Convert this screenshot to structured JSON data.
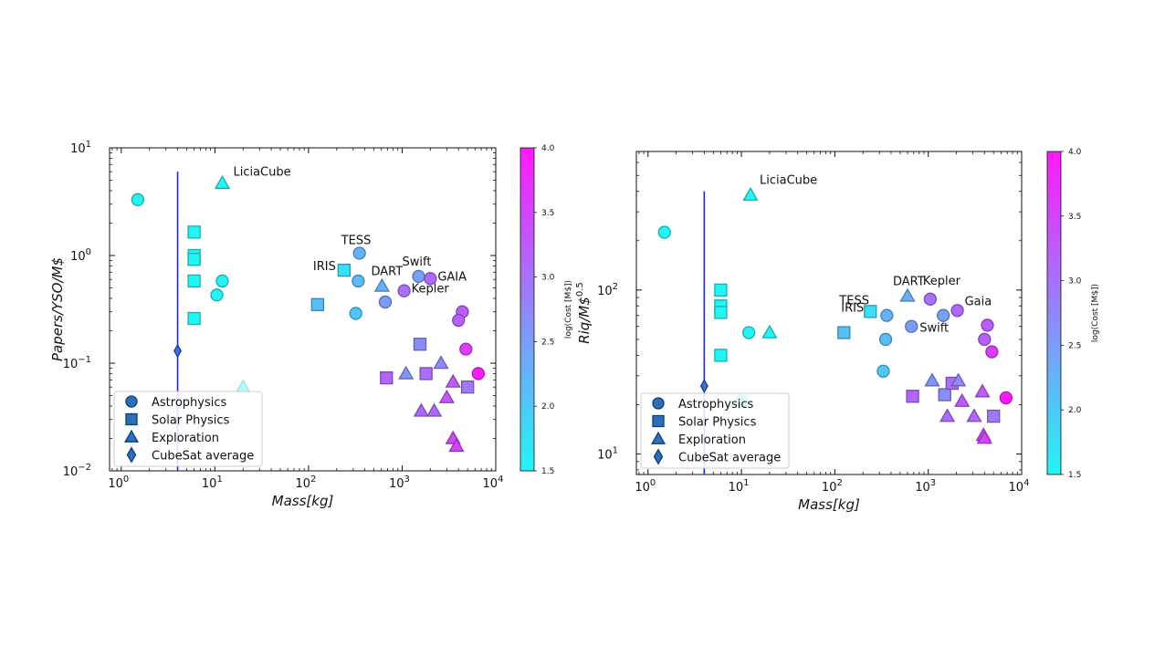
{
  "colormap": {
    "low": "#22f5f5",
    "high": "#ff19ff",
    "range": [
      1.5,
      4.0
    ]
  },
  "legend": {
    "entries": [
      {
        "label": "Astrophysics",
        "marker": "circle"
      },
      {
        "label": "Solar Physics",
        "marker": "square"
      },
      {
        "label": "Exploration",
        "marker": "triangle"
      },
      {
        "label": "CubeSat average",
        "marker": "diamond"
      }
    ],
    "placement": "lower-left"
  },
  "chart_data": [
    {
      "type": "scatter",
      "xlabel": "Mass[kg]",
      "ylabel": "Papers/YSO/M$",
      "xscale": "log",
      "yscale": "log",
      "xlim": [
        0.75,
        10000
      ],
      "ylim": [
        0.01,
        10
      ],
      "xticks": [
        {
          "v": 1,
          "b": "10",
          "e": "0"
        },
        {
          "v": 10,
          "b": "10",
          "e": "1"
        },
        {
          "v": 100,
          "b": "10",
          "e": "2"
        },
        {
          "v": 1000,
          "b": "10",
          "e": "3"
        },
        {
          "v": 10000,
          "b": "10",
          "e": "4"
        }
      ],
      "yticks": [
        {
          "v": 0.01,
          "b": "10",
          "e": "−2"
        },
        {
          "v": 0.1,
          "b": "10",
          "e": "−1"
        },
        {
          "v": 1,
          "b": "10",
          "e": "0"
        },
        {
          "v": 10,
          "b": "10",
          "e": "1"
        }
      ],
      "colorbar": {
        "label": "log(Cost [M$])",
        "ticks": [
          "1.5",
          "2.0",
          "2.5",
          "3.0",
          "3.5",
          "4.0"
        ],
        "tick_values": [
          1.5,
          2.0,
          2.5,
          3.0,
          3.5,
          4.0
        ]
      },
      "cubesat_average": {
        "x": 4,
        "y": 0.13,
        "y_low": 0.01,
        "y_high": 6
      },
      "points": [
        {
          "x": 1.5,
          "y": 3.3,
          "m": "circle",
          "c": 1.5
        },
        {
          "x": 10.5,
          "y": 0.43,
          "m": "circle",
          "c": 1.55
        },
        {
          "x": 12,
          "y": 0.58,
          "m": "circle",
          "c": 1.55
        },
        {
          "x": 12,
          "y": 4.7,
          "m": "triangle",
          "c": 1.5,
          "label": "LiciaCube"
        },
        {
          "x": 20,
          "y": 0.06,
          "m": "triangle",
          "c": 1.5,
          "alpha": 0.35
        },
        {
          "x": 6,
          "y": 1.65,
          "m": "square",
          "c": 1.5
        },
        {
          "x": 6,
          "y": 1.0,
          "m": "square",
          "c": 1.5
        },
        {
          "x": 6,
          "y": 0.92,
          "m": "square",
          "c": 1.5
        },
        {
          "x": 6,
          "y": 0.58,
          "m": "square",
          "c": 1.5
        },
        {
          "x": 6,
          "y": 0.26,
          "m": "square",
          "c": 1.5
        },
        {
          "x": 350,
          "y": 1.05,
          "m": "circle",
          "c": 2.25,
          "label": "TESS"
        },
        {
          "x": 340,
          "y": 0.58,
          "m": "circle",
          "c": 2.15
        },
        {
          "x": 320,
          "y": 0.29,
          "m": "circle",
          "c": 2.0
        },
        {
          "x": 240,
          "y": 0.73,
          "m": "square",
          "c": 1.75,
          "label": "IRIS"
        },
        {
          "x": 125,
          "y": 0.35,
          "m": "square",
          "c": 2.1
        },
        {
          "x": 610,
          "y": 0.52,
          "m": "triangle",
          "c": 2.3,
          "label": "DART"
        },
        {
          "x": 660,
          "y": 0.37,
          "m": "circle",
          "c": 2.5
        },
        {
          "x": 1500,
          "y": 0.64,
          "m": "circle",
          "c": 2.45,
          "label": "Swift"
        },
        {
          "x": 2000,
          "y": 0.61,
          "m": "circle",
          "c": 3.1,
          "label": "GAIA"
        },
        {
          "x": 1050,
          "y": 0.47,
          "m": "circle",
          "c": 3.0,
          "label": "Kepler"
        },
        {
          "x": 4400,
          "y": 0.3,
          "m": "circle",
          "c": 3.25
        },
        {
          "x": 4000,
          "y": 0.25,
          "m": "circle",
          "c": 3.2
        },
        {
          "x": 4800,
          "y": 0.135,
          "m": "circle",
          "c": 3.6
        },
        {
          "x": 6500,
          "y": 0.08,
          "m": "circle",
          "c": 4.0
        },
        {
          "x": 1550,
          "y": 0.15,
          "m": "square",
          "c": 2.7
        },
        {
          "x": 1800,
          "y": 0.08,
          "m": "square",
          "c": 3.05
        },
        {
          "x": 680,
          "y": 0.073,
          "m": "square",
          "c": 3.15
        },
        {
          "x": 5000,
          "y": 0.06,
          "m": "square",
          "c": 2.9
        },
        {
          "x": 1100,
          "y": 0.08,
          "m": "triangle",
          "c": 2.6
        },
        {
          "x": 2600,
          "y": 0.1,
          "m": "triangle",
          "c": 2.75
        },
        {
          "x": 3500,
          "y": 0.067,
          "m": "triangle",
          "c": 3.25
        },
        {
          "x": 3000,
          "y": 0.048,
          "m": "triangle",
          "c": 3.3
        },
        {
          "x": 1600,
          "y": 0.036,
          "m": "triangle",
          "c": 3.1
        },
        {
          "x": 2200,
          "y": 0.036,
          "m": "triangle",
          "c": 3.05
        },
        {
          "x": 3500,
          "y": 0.02,
          "m": "triangle",
          "c": 3.45
        },
        {
          "x": 3800,
          "y": 0.017,
          "m": "triangle",
          "c": 3.5
        }
      ]
    },
    {
      "type": "scatter",
      "xlabel": "Mass[kg]",
      "ylabel": "Riq/M$",
      "ylabel_sup": "0.5",
      "xscale": "log",
      "yscale": "log",
      "xlim": [
        0.75,
        10000
      ],
      "ylim": [
        7.5,
        700
      ],
      "xticks": [
        {
          "v": 1,
          "b": "10",
          "e": "0"
        },
        {
          "v": 10,
          "b": "10",
          "e": "1"
        },
        {
          "v": 100,
          "b": "10",
          "e": "2"
        },
        {
          "v": 1000,
          "b": "10",
          "e": "3"
        },
        {
          "v": 10000,
          "b": "10",
          "e": "4"
        }
      ],
      "yticks": [
        {
          "v": 10,
          "b": "10",
          "e": "1"
        },
        {
          "v": 100,
          "b": "10",
          "e": "2"
        }
      ],
      "colorbar": {
        "label": "log(Cost [M$])",
        "ticks": [
          "1.5",
          "2.0",
          "2.5",
          "3.0",
          "3.5",
          "4.0"
        ],
        "tick_values": [
          1.5,
          2.0,
          2.5,
          3.0,
          3.5,
          4.0
        ]
      },
      "cubesat_average": {
        "x": 4,
        "y": 26,
        "y_low": 7.5,
        "y_high": 400
      },
      "points": [
        {
          "x": 1.5,
          "y": 225,
          "m": "circle",
          "c": 1.5
        },
        {
          "x": 12,
          "y": 55,
          "m": "circle",
          "c": 1.5
        },
        {
          "x": 10,
          "y": 21,
          "m": "circle",
          "c": 1.5
        },
        {
          "x": 12.5,
          "y": 380,
          "m": "triangle",
          "c": 1.5,
          "label": "LiciaCube"
        },
        {
          "x": 20,
          "y": 55,
          "m": "triangle",
          "c": 1.5
        },
        {
          "x": 6,
          "y": 100,
          "m": "square",
          "c": 1.5
        },
        {
          "x": 6,
          "y": 80,
          "m": "square",
          "c": 1.5
        },
        {
          "x": 6,
          "y": 73,
          "m": "square",
          "c": 1.5
        },
        {
          "x": 6,
          "y": 40,
          "m": "square",
          "c": 1.5
        },
        {
          "x": 240,
          "y": 74,
          "m": "square",
          "c": 1.75,
          "label": "IRIS"
        },
        {
          "x": 125,
          "y": 55,
          "m": "square",
          "c": 2.1
        },
        {
          "x": 360,
          "y": 70,
          "m": "circle",
          "c": 2.25,
          "label": "TESS"
        },
        {
          "x": 350,
          "y": 50,
          "m": "circle",
          "c": 2.15
        },
        {
          "x": 330,
          "y": 32,
          "m": "circle",
          "c": 2.0
        },
        {
          "x": 600,
          "y": 92,
          "m": "triangle",
          "c": 2.3,
          "label": "DART"
        },
        {
          "x": 660,
          "y": 60,
          "m": "circle",
          "c": 2.5
        },
        {
          "x": 1050,
          "y": 88,
          "m": "circle",
          "c": 3.0,
          "label": "Kepler"
        },
        {
          "x": 1450,
          "y": 70,
          "m": "circle",
          "c": 2.45,
          "label": "Swift"
        },
        {
          "x": 2050,
          "y": 75,
          "m": "circle",
          "c": 3.1,
          "label": "Gaia"
        },
        {
          "x": 4300,
          "y": 61,
          "m": "circle",
          "c": 3.25
        },
        {
          "x": 4000,
          "y": 50,
          "m": "circle",
          "c": 3.2
        },
        {
          "x": 4800,
          "y": 42,
          "m": "circle",
          "c": 3.6
        },
        {
          "x": 6800,
          "y": 22,
          "m": "circle",
          "c": 4.0
        },
        {
          "x": 1500,
          "y": 23,
          "m": "square",
          "c": 2.7
        },
        {
          "x": 1800,
          "y": 27,
          "m": "square",
          "c": 3.05
        },
        {
          "x": 680,
          "y": 22.5,
          "m": "square",
          "c": 3.15
        },
        {
          "x": 5000,
          "y": 17,
          "m": "square",
          "c": 2.9
        },
        {
          "x": 1100,
          "y": 28,
          "m": "triangle",
          "c": 2.6
        },
        {
          "x": 2100,
          "y": 28,
          "m": "triangle",
          "c": 2.75
        },
        {
          "x": 3800,
          "y": 24,
          "m": "triangle",
          "c": 3.25
        },
        {
          "x": 2300,
          "y": 21,
          "m": "triangle",
          "c": 3.3
        },
        {
          "x": 3100,
          "y": 17,
          "m": "triangle",
          "c": 3.1
        },
        {
          "x": 1600,
          "y": 17,
          "m": "triangle",
          "c": 3.05
        },
        {
          "x": 3900,
          "y": 13,
          "m": "triangle",
          "c": 3.45
        },
        {
          "x": 4000,
          "y": 12.5,
          "m": "triangle",
          "c": 3.5
        }
      ]
    }
  ]
}
